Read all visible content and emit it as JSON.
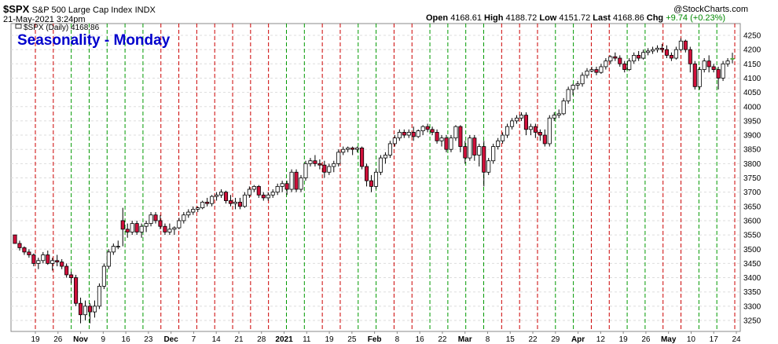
{
  "header": {
    "symbol": "$SPX",
    "description": "S&P 500 Large Cap Index",
    "exchange": "INDX",
    "datetime": "21-May-2021 3:24pm",
    "brand": "@StockCharts.com"
  },
  "quote": {
    "open_label": "Open",
    "open": "4168.61",
    "high_label": "High",
    "high": "4188.72",
    "low_label": "Low",
    "low": "4151.72",
    "last_label": "Last",
    "last": "4168.86",
    "chg_label": "Chg",
    "chg": "+9.74 (+0.23%)"
  },
  "colors": {
    "up_fill": "#ffffff",
    "down_fill": "#d0103a",
    "candle_outline": "#000000",
    "red_line": "#cc0000",
    "green_line": "#009900",
    "grid": "#dddddd",
    "overlay_title": "#0000cc"
  },
  "chart_data": {
    "type": "candlestick",
    "overlay_title": "Seasonality - Monday",
    "legend": "$SPX (Daily) 4168.86",
    "y_axis": {
      "min": 3250,
      "max": 4250,
      "ticks": [
        3250,
        3300,
        3350,
        3400,
        3450,
        3500,
        3550,
        3600,
        3650,
        3700,
        3750,
        3800,
        3850,
        3900,
        3950,
        4000,
        4050,
        4100,
        4150,
        4200,
        4250
      ],
      "position": "right"
    },
    "x_ticks": [
      {
        "label": "19",
        "bold": false
      },
      {
        "label": "26",
        "bold": false
      },
      {
        "label": "Nov",
        "bold": true
      },
      {
        "label": "9",
        "bold": false
      },
      {
        "label": "16",
        "bold": false
      },
      {
        "label": "23",
        "bold": false
      },
      {
        "label": "Dec",
        "bold": true
      },
      {
        "label": "7",
        "bold": false
      },
      {
        "label": "14",
        "bold": false
      },
      {
        "label": "21",
        "bold": false
      },
      {
        "label": "28",
        "bold": false
      },
      {
        "label": "2021",
        "bold": true
      },
      {
        "label": "11",
        "bold": false
      },
      {
        "label": "19",
        "bold": false
      },
      {
        "label": "25",
        "bold": false
      },
      {
        "label": "Feb",
        "bold": true
      },
      {
        "label": "8",
        "bold": false
      },
      {
        "label": "16",
        "bold": false
      },
      {
        "label": "22",
        "bold": false
      },
      {
        "label": "Mar",
        "bold": true
      },
      {
        "label": "8",
        "bold": false
      },
      {
        "label": "15",
        "bold": false
      },
      {
        "label": "22",
        "bold": false
      },
      {
        "label": "29",
        "bold": false
      },
      {
        "label": "Apr",
        "bold": true
      },
      {
        "label": "12",
        "bold": false
      },
      {
        "label": "19",
        "bold": false
      },
      {
        "label": "26",
        "bold": false
      },
      {
        "label": "May",
        "bold": true
      },
      {
        "label": "10",
        "bold": false
      },
      {
        "label": "17",
        "bold": false
      },
      {
        "label": "24",
        "bold": false
      }
    ],
    "monday_lines": [
      "red",
      "red",
      "green",
      "green",
      "green",
      "green",
      "green",
      "red",
      "red",
      "red",
      "red",
      "red",
      "red",
      "red",
      "green",
      "green",
      "red",
      "red",
      "green",
      "green",
      "red",
      "red",
      "green",
      "green",
      "green",
      "green",
      "red",
      "red",
      "red",
      "green",
      "green",
      "red",
      "red",
      "green",
      "green",
      "red",
      "red",
      "green",
      "green",
      "red"
    ],
    "candles": [
      [
        3550,
        3545,
        3530,
        3520
      ],
      [
        3520,
        3530,
        3495,
        3505
      ],
      [
        3505,
        3510,
        3480,
        3490
      ],
      [
        3490,
        3500,
        3470,
        3480
      ],
      [
        3480,
        3485,
        3440,
        3450
      ],
      [
        3450,
        3470,
        3430,
        3460
      ],
      [
        3460,
        3490,
        3450,
        3480
      ],
      [
        3480,
        3495,
        3445,
        3450
      ],
      [
        3450,
        3470,
        3425,
        3460
      ],
      [
        3460,
        3480,
        3440,
        3455
      ],
      [
        3455,
        3465,
        3430,
        3440
      ],
      [
        3440,
        3450,
        3400,
        3410
      ],
      [
        3410,
        3420,
        3380,
        3400
      ],
      [
        3400,
        3410,
        3300,
        3310
      ],
      [
        3310,
        3330,
        3240,
        3270
      ],
      [
        3270,
        3320,
        3250,
        3300
      ],
      [
        3300,
        3310,
        3240,
        3280
      ],
      [
        3280,
        3320,
        3260,
        3300
      ],
      [
        3300,
        3380,
        3290,
        3370
      ],
      [
        3370,
        3450,
        3360,
        3440
      ],
      [
        3440,
        3500,
        3430,
        3490
      ],
      [
        3490,
        3520,
        3480,
        3510
      ],
      [
        3510,
        3530,
        3500,
        3510
      ],
      [
        3600,
        3645,
        3510,
        3570
      ],
      [
        3570,
        3590,
        3540,
        3560
      ],
      [
        3560,
        3600,
        3550,
        3590
      ],
      [
        3590,
        3600,
        3550,
        3560
      ],
      [
        3560,
        3590,
        3540,
        3580
      ],
      [
        3580,
        3600,
        3560,
        3590
      ],
      [
        3590,
        3630,
        3580,
        3620
      ],
      [
        3620,
        3630,
        3590,
        3600
      ],
      [
        3600,
        3620,
        3570,
        3580
      ],
      [
        3580,
        3590,
        3550,
        3560
      ],
      [
        3560,
        3590,
        3550,
        3570
      ],
      [
        3570,
        3580,
        3550,
        3575
      ],
      [
        3575,
        3610,
        3570,
        3600
      ],
      [
        3600,
        3630,
        3590,
        3620
      ],
      [
        3620,
        3640,
        3610,
        3630
      ],
      [
        3630,
        3650,
        3620,
        3640
      ],
      [
        3640,
        3650,
        3630,
        3645
      ],
      [
        3645,
        3670,
        3640,
        3665
      ],
      [
        3665,
        3680,
        3650,
        3660
      ],
      [
        3660,
        3690,
        3650,
        3685
      ],
      [
        3685,
        3700,
        3670,
        3690
      ],
      [
        3690,
        3710,
        3680,
        3700
      ],
      [
        3700,
        3705,
        3660,
        3670
      ],
      [
        3670,
        3690,
        3650,
        3660
      ],
      [
        3660,
        3680,
        3640,
        3665
      ],
      [
        3665,
        3680,
        3640,
        3650
      ],
      [
        3650,
        3700,
        3645,
        3690
      ],
      [
        3690,
        3720,
        3680,
        3710
      ],
      [
        3710,
        3725,
        3700,
        3720
      ],
      [
        3720,
        3725,
        3680,
        3690
      ],
      [
        3690,
        3700,
        3670,
        3680
      ],
      [
        3680,
        3700,
        3670,
        3690
      ],
      [
        3690,
        3710,
        3680,
        3700
      ],
      [
        3700,
        3730,
        3690,
        3720
      ],
      [
        3720,
        3740,
        3700,
        3730
      ],
      [
        3730,
        3740,
        3690,
        3710
      ],
      [
        3710,
        3780,
        3700,
        3770
      ],
      [
        3770,
        3780,
        3700,
        3710
      ],
      [
        3710,
        3760,
        3700,
        3750
      ],
      [
        3750,
        3810,
        3740,
        3800
      ],
      [
        3800,
        3820,
        3790,
        3810
      ],
      [
        3810,
        3830,
        3790,
        3800
      ],
      [
        3800,
        3815,
        3780,
        3795
      ],
      [
        3795,
        3810,
        3750,
        3770
      ],
      [
        3770,
        3800,
        3760,
        3790
      ],
      [
        3790,
        3810,
        3770,
        3800
      ],
      [
        3800,
        3850,
        3790,
        3840
      ],
      [
        3840,
        3860,
        3830,
        3850
      ],
      [
        3850,
        3860,
        3840,
        3855
      ],
      [
        3855,
        3860,
        3830,
        3850
      ],
      [
        3850,
        3860,
        3840,
        3855
      ],
      [
        3855,
        3860,
        3780,
        3790
      ],
      [
        3790,
        3800,
        3720,
        3740
      ],
      [
        3740,
        3760,
        3700,
        3720
      ],
      [
        3720,
        3780,
        3710,
        3770
      ],
      [
        3770,
        3830,
        3760,
        3820
      ],
      [
        3820,
        3840,
        3800,
        3830
      ],
      [
        3830,
        3880,
        3820,
        3870
      ],
      [
        3870,
        3900,
        3860,
        3890
      ],
      [
        3890,
        3920,
        3880,
        3910
      ],
      [
        3910,
        3920,
        3890,
        3900
      ],
      [
        3900,
        3920,
        3890,
        3910
      ],
      [
        3910,
        3930,
        3880,
        3895
      ],
      [
        3895,
        3920,
        3890,
        3915
      ],
      [
        3915,
        3935,
        3900,
        3930
      ],
      [
        3930,
        3940,
        3910,
        3920
      ],
      [
        3920,
        3930,
        3900,
        3910
      ],
      [
        3910,
        3920,
        3870,
        3880
      ],
      [
        3880,
        3900,
        3860,
        3890
      ],
      [
        3890,
        3900,
        3840,
        3850
      ],
      [
        3850,
        3900,
        3840,
        3890
      ],
      [
        3890,
        3935,
        3880,
        3930
      ],
      [
        3930,
        3935,
        3840,
        3860
      ],
      [
        3860,
        3880,
        3800,
        3820
      ],
      [
        3820,
        3900,
        3810,
        3890
      ],
      [
        3890,
        3900,
        3810,
        3830
      ],
      [
        3830,
        3870,
        3790,
        3860
      ],
      [
        3860,
        3880,
        3720,
        3770
      ],
      [
        3770,
        3820,
        3760,
        3810
      ],
      [
        3810,
        3870,
        3800,
        3860
      ],
      [
        3860,
        3890,
        3850,
        3880
      ],
      [
        3880,
        3910,
        3870,
        3900
      ],
      [
        3900,
        3940,
        3890,
        3930
      ],
      [
        3930,
        3960,
        3920,
        3950
      ],
      [
        3950,
        3970,
        3940,
        3960
      ],
      [
        3960,
        3980,
        3950,
        3970
      ],
      [
        3970,
        3980,
        3900,
        3920
      ],
      [
        3920,
        3940,
        3900,
        3930
      ],
      [
        3930,
        3940,
        3890,
        3910
      ],
      [
        3910,
        3920,
        3880,
        3900
      ],
      [
        3900,
        3920,
        3860,
        3870
      ],
      [
        3870,
        3970,
        3860,
        3960
      ],
      [
        3960,
        3980,
        3950,
        3970
      ],
      [
        3970,
        3990,
        3960,
        3975
      ],
      [
        3975,
        4030,
        3970,
        4020
      ],
      [
        4020,
        4070,
        4010,
        4060
      ],
      [
        4060,
        4080,
        4040,
        4075
      ],
      [
        4075,
        4090,
        4060,
        4080
      ],
      [
        4080,
        4120,
        4070,
        4110
      ],
      [
        4110,
        4135,
        4100,
        4125
      ],
      [
        4125,
        4140,
        4120,
        4130
      ],
      [
        4130,
        4140,
        4110,
        4120
      ],
      [
        4120,
        4150,
        4115,
        4140
      ],
      [
        4140,
        4170,
        4130,
        4160
      ],
      [
        4160,
        4180,
        4150,
        4175
      ],
      [
        4175,
        4190,
        4160,
        4170
      ],
      [
        4170,
        4180,
        4140,
        4150
      ],
      [
        4150,
        4160,
        4120,
        4130
      ],
      [
        4130,
        4170,
        4125,
        4160
      ],
      [
        4160,
        4190,
        4150,
        4180
      ],
      [
        4180,
        4195,
        4160,
        4170
      ],
      [
        4170,
        4200,
        4165,
        4190
      ],
      [
        4190,
        4205,
        4180,
        4195
      ],
      [
        4195,
        4210,
        4185,
        4200
      ],
      [
        4200,
        4215,
        4190,
        4205
      ],
      [
        4205,
        4220,
        4190,
        4200
      ],
      [
        4200,
        4215,
        4170,
        4180
      ],
      [
        4180,
        4190,
        4160,
        4170
      ],
      [
        4170,
        4210,
        4165,
        4200
      ],
      [
        4200,
        4240,
        4195,
        4230
      ],
      [
        4230,
        4235,
        4190,
        4200
      ],
      [
        4200,
        4210,
        4120,
        4150
      ],
      [
        4150,
        4160,
        4060,
        4070
      ],
      [
        4070,
        4140,
        4060,
        4130
      ],
      [
        4130,
        4170,
        4120,
        4160
      ],
      [
        4160,
        4180,
        4120,
        4140
      ],
      [
        4140,
        4150,
        4120,
        4130
      ],
      [
        4130,
        4140,
        4060,
        4100
      ],
      [
        4100,
        4160,
        4090,
        4150
      ],
      [
        4150,
        4170,
        4140,
        4160
      ],
      [
        4168,
        4189,
        4152,
        4169
      ]
    ]
  }
}
